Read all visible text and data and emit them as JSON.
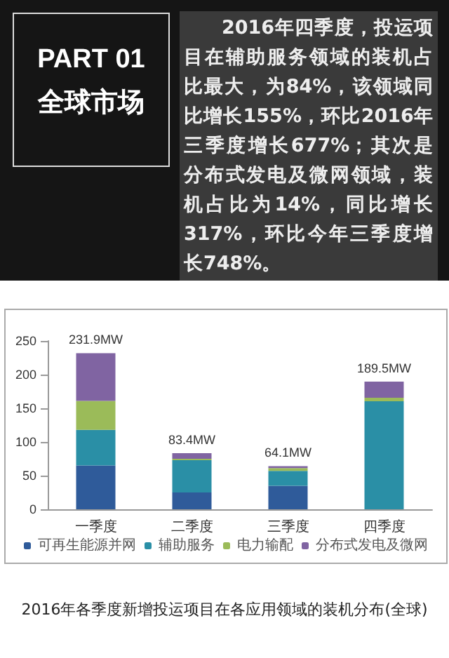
{
  "chart_data": {
    "type": "bar",
    "title": "2016年各季度新增投运项目在各应用领域的装机分布(全球)",
    "annotations": [
      "PART 01",
      "全球市场",
      "2016年四季度，投运项目在辅助服务领域的装机占比最大，为84%，该领域同比增长155%，环比2016年三季度增长677%；其次是分布式发电及微网领域，装机占比为14%，同比增长317%，环比今年三季度增长748%。"
    ],
    "categories": [
      "一季度",
      "二季度",
      "三季度",
      "四季度"
    ],
    "stacked": true,
    "series": [
      {
        "name": "可再生能源并网",
        "color": "#2f5b9a",
        "values": [
          65,
          25,
          35,
          0
        ]
      },
      {
        "name": "辅助服务",
        "color": "#2a8fa6",
        "values": [
          53,
          48,
          22.1,
          160.5
        ]
      },
      {
        "name": "电力输配",
        "color": "#9bbb59",
        "values": [
          43,
          2,
          4,
          5
        ]
      },
      {
        "name": "分布式发电及微网",
        "color": "#8064a2",
        "values": [
          70.9,
          8.4,
          3,
          24
        ]
      }
    ],
    "totals": [
      "231.9MW",
      "83.4MW",
      "64.1MW",
      "189.5MW"
    ],
    "ylim": [
      0,
      250
    ],
    "yticks": [
      0,
      50,
      100,
      150,
      200,
      250
    ],
    "grid": false,
    "legend": "bottom"
  }
}
